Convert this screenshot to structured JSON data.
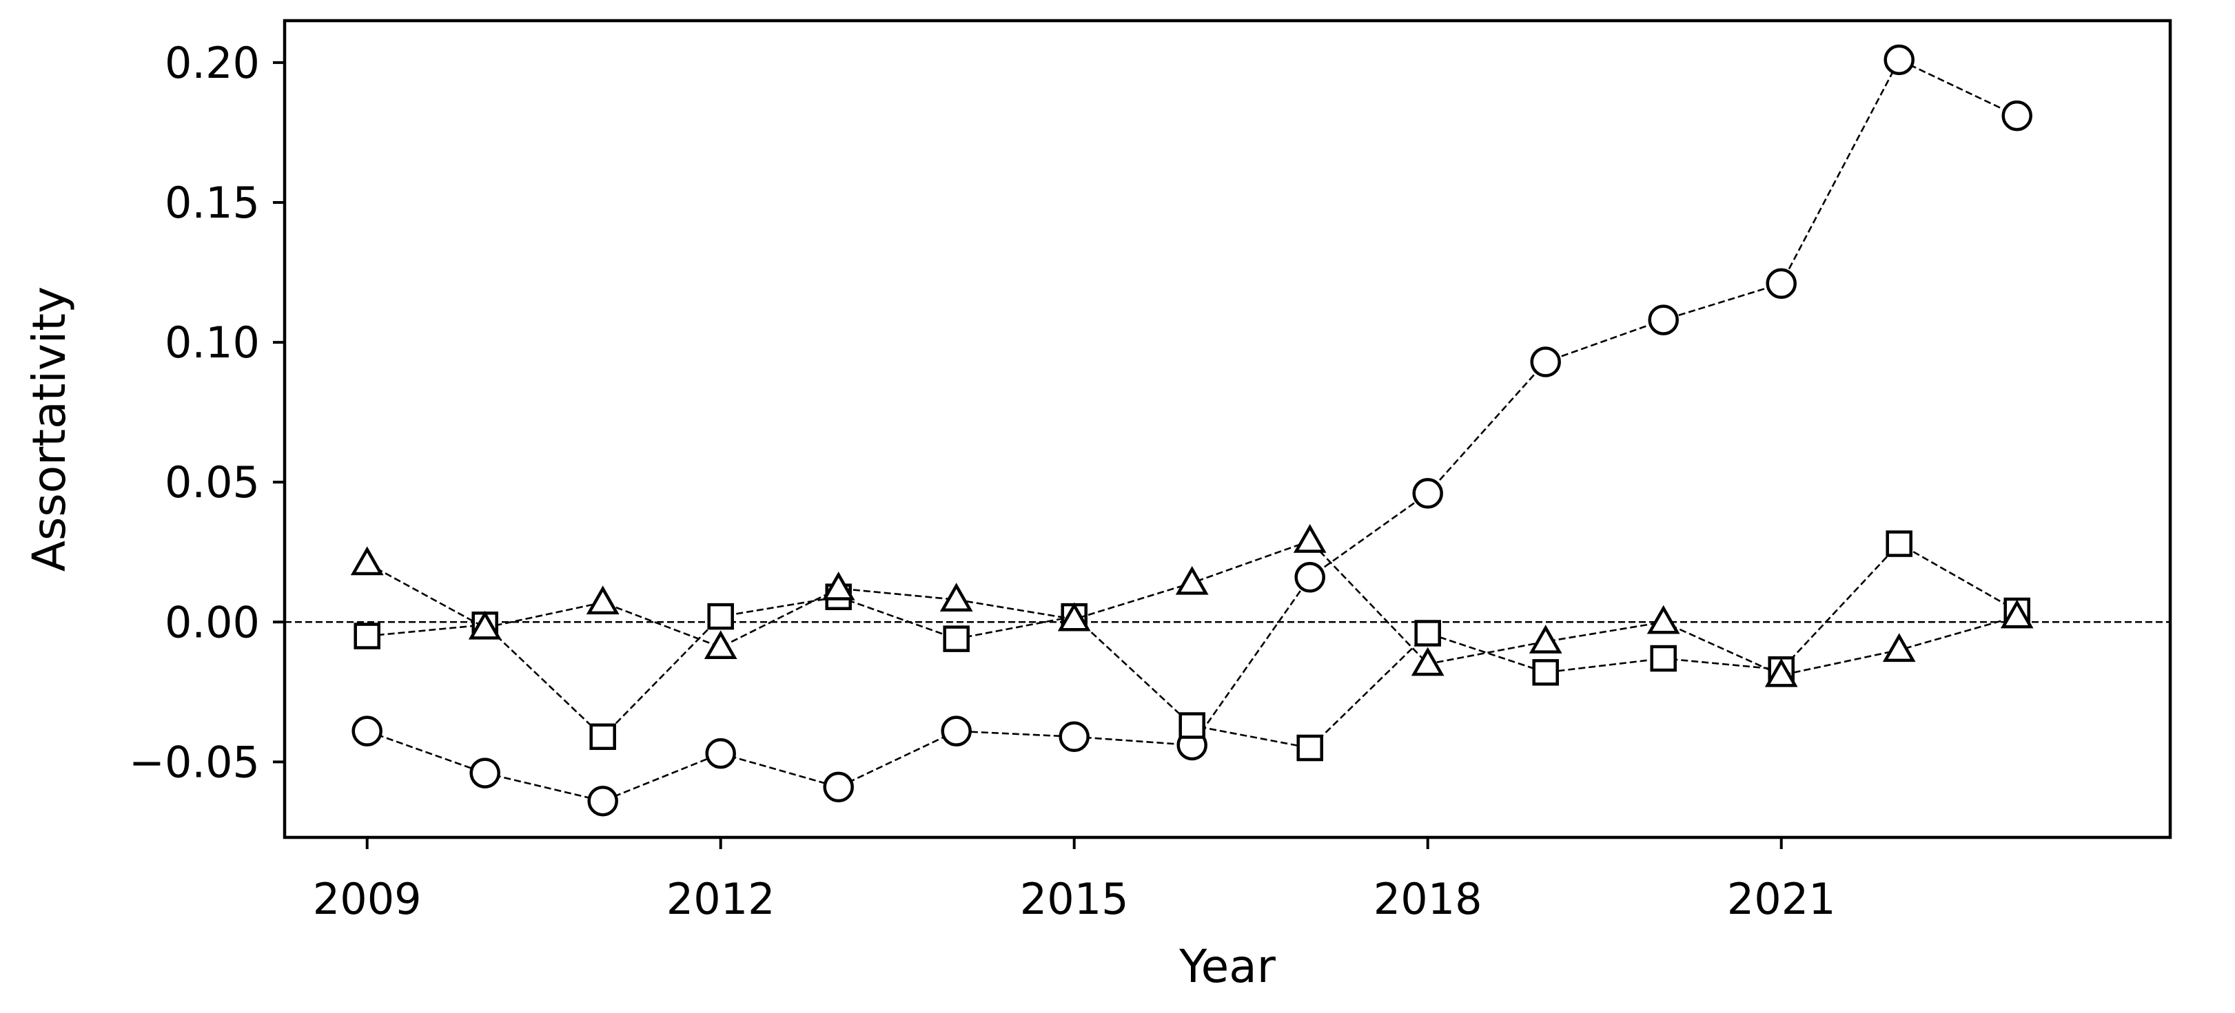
{
  "chart_data": {
    "type": "line",
    "title": "",
    "xlabel": "Year",
    "ylabel": "Assortativity",
    "x": [
      2009,
      2010,
      2011,
      2012,
      2013,
      2014,
      2015,
      2016,
      2017,
      2018,
      2019,
      2020,
      2021,
      2022,
      2023
    ],
    "xlim": [
      2008.3,
      2024.3
    ],
    "ylim": [
      -0.077,
      0.215
    ],
    "xticks": [
      2009,
      2012,
      2015,
      2018,
      2021
    ],
    "xtick_labels": [
      "2009",
      "2012",
      "2015",
      "2018",
      "2021"
    ],
    "yticks": [
      -0.05,
      0.0,
      0.05,
      0.1,
      0.15,
      0.2
    ],
    "ytick_labels": [
      "−0.05",
      "0.00",
      "0.05",
      "0.10",
      "0.15",
      "0.20"
    ],
    "reference_line": {
      "y": 0.0,
      "style": "dashed"
    },
    "grid": false,
    "legend": "none",
    "series": [
      {
        "marker": "circle",
        "values": [
          -0.039,
          -0.054,
          -0.064,
          -0.047,
          -0.059,
          -0.039,
          -0.041,
          -0.044,
          0.016,
          0.046,
          0.093,
          0.108,
          0.121,
          0.201,
          0.181
        ]
      },
      {
        "marker": "square",
        "values": [
          -0.005,
          -0.001,
          -0.041,
          0.002,
          0.009,
          -0.006,
          0.002,
          -0.037,
          -0.045,
          -0.004,
          -0.018,
          -0.013,
          -0.017,
          0.028,
          0.004
        ]
      },
      {
        "marker": "triangle",
        "values": [
          0.021,
          -0.002,
          0.007,
          -0.009,
          0.012,
          0.008,
          0.001,
          0.014,
          0.029,
          -0.015,
          -0.007,
          0.0,
          -0.019,
          -0.01,
          0.002
        ]
      }
    ],
    "colors": {
      "line": "#000000",
      "marker_fill": "#ffffff",
      "background": "#ffffff"
    }
  }
}
